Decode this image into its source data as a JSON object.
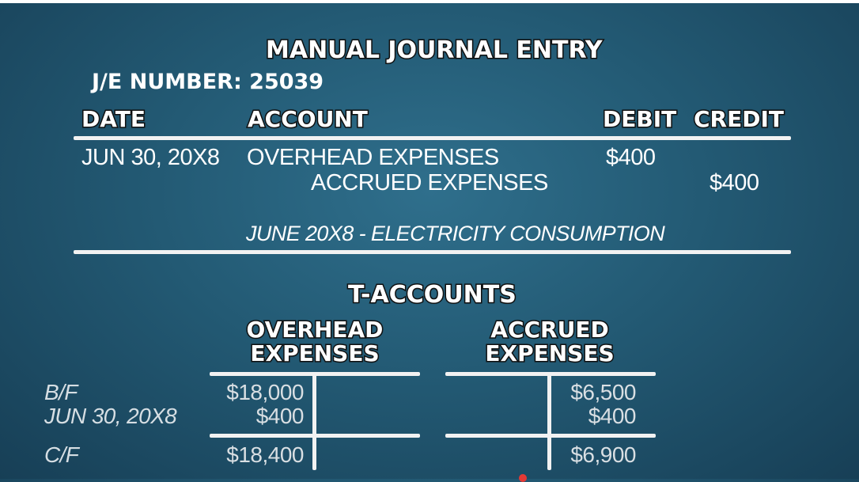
{
  "journal": {
    "title": "MANUAL JOURNAL ENTRY",
    "je_number": "J/E NUMBER: 25039",
    "columns": {
      "date": "DATE",
      "account": "ACCOUNT",
      "debit": "DEBIT",
      "credit": "CREDIT"
    },
    "entries": [
      {
        "date": "JUN 30, 20X8",
        "account": "OVERHEAD EXPENSES",
        "debit": "$400",
        "credit": ""
      },
      {
        "date": "",
        "account": "ACCRUED EXPENSES",
        "debit": "",
        "credit": "$400"
      }
    ],
    "memo": "JUNE 20X8 - ELECTRICITY CONSUMPTION"
  },
  "t_accounts": {
    "title": "T-ACCOUNTS",
    "row_labels": [
      "B/F",
      "JUN 30, 20X8",
      "C/F"
    ],
    "accounts": [
      {
        "name_line1": "OVERHEAD",
        "name_line2": "EXPENSES",
        "debit": [
          "$18,000",
          "$400"
        ],
        "credit": [],
        "balance": "$18,400"
      },
      {
        "name_line1": "ACCRUED",
        "name_line2": "EXPENSES",
        "debit": [],
        "credit": [
          "$6,500",
          "$400"
        ],
        "balance": "$6,900"
      }
    ]
  },
  "colors": {
    "background": "#235a74",
    "text": "#ffffff",
    "rules": "#f2f2f2",
    "progress_marker": "#e53935"
  }
}
